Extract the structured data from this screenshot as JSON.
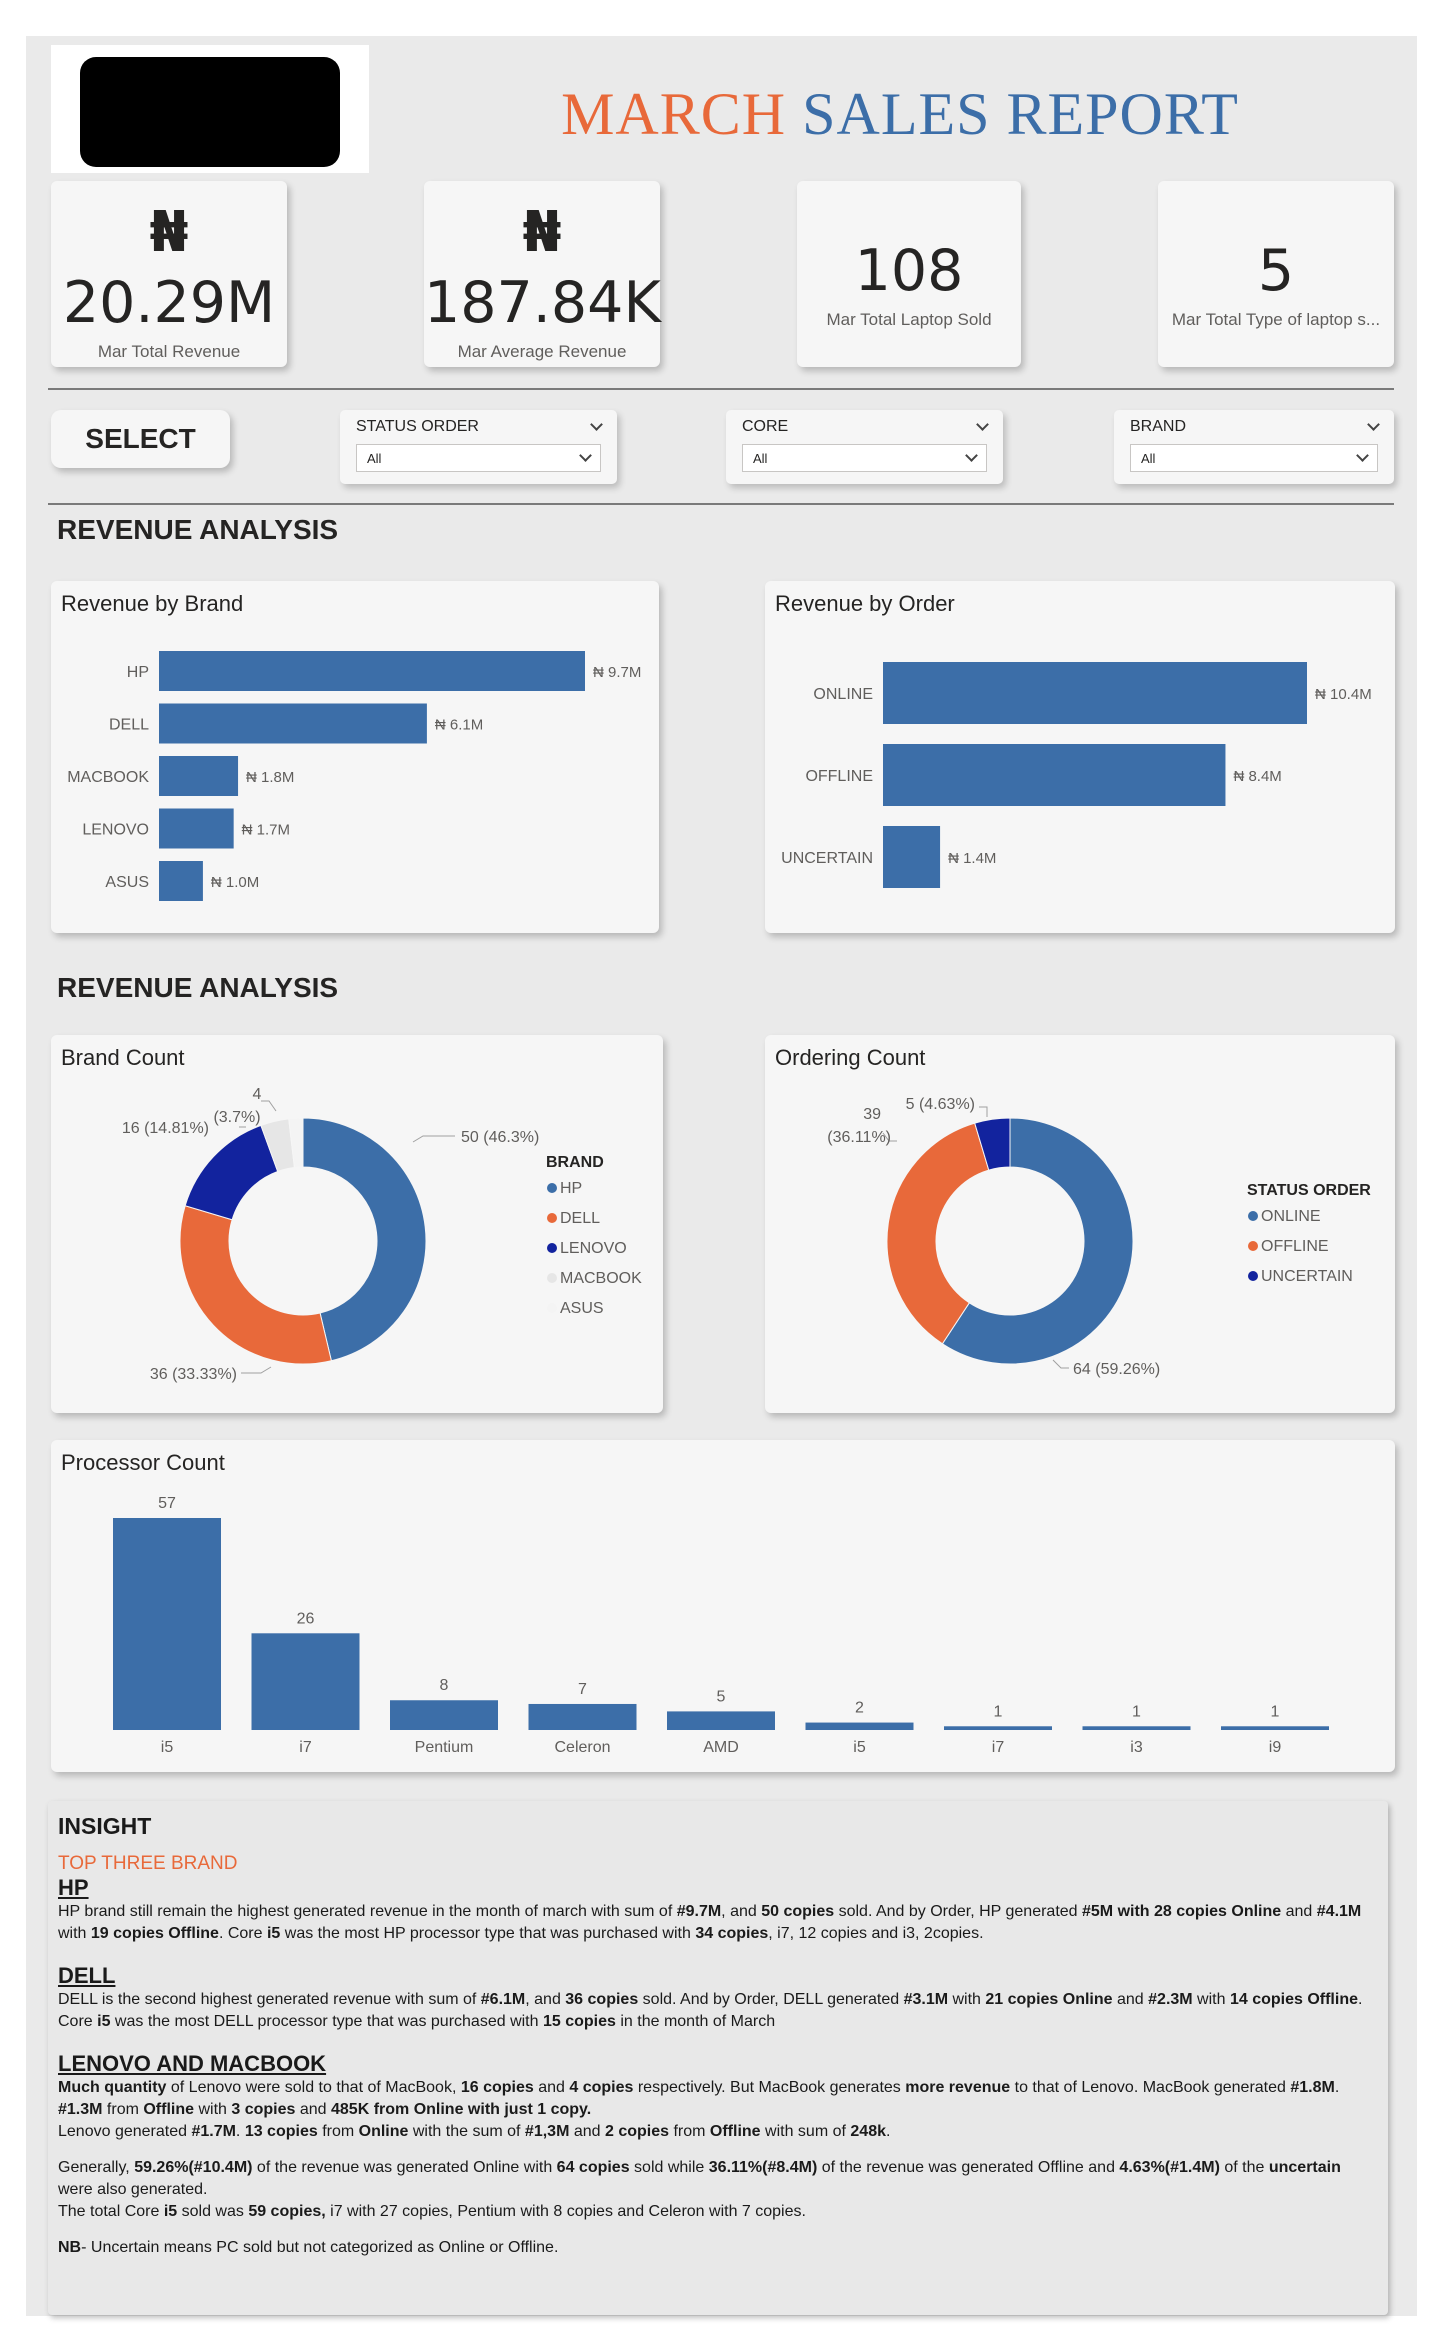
{
  "header": {
    "title_part1": "MARCH",
    "title_part2": "SALES REPORT",
    "title_color1": "#e8693a",
    "title_color2": "#3c6ea8"
  },
  "kpis": [
    {
      "currency": "₦",
      "value": "20.29M",
      "label": "Mar Total Revenue"
    },
    {
      "currency": "₦",
      "value": "187.84K",
      "label": "Mar Average Revenue"
    },
    {
      "currency": "",
      "value": "108",
      "label": "Mar Total Laptop Sold"
    },
    {
      "currency": "",
      "value": "5",
      "label": "Mar Total Type of laptop s..."
    }
  ],
  "filters": {
    "select_label": "SELECT",
    "slicers": [
      {
        "title": "STATUS ORDER",
        "value": "All"
      },
      {
        "title": "CORE",
        "value": "All"
      },
      {
        "title": "BRAND",
        "value": "All"
      }
    ]
  },
  "sections": {
    "revenue_1": "REVENUE ANALYSIS",
    "revenue_2": "REVENUE ANALYSIS"
  },
  "colors": {
    "blue": "#3c6ea8",
    "orange": "#e8693a",
    "navy": "#12239e",
    "light": "#e6e6e6",
    "accent_title": "#e8693a"
  },
  "chart_data": [
    {
      "id": "revenue_by_brand",
      "type": "bar",
      "orientation": "horizontal",
      "title": "Revenue by Brand",
      "categories": [
        "HP",
        "DELL",
        "MACBOOK",
        "LENOVO",
        "ASUS"
      ],
      "values": [
        9.7,
        6.1,
        1.8,
        1.7,
        1.0
      ],
      "value_labels": [
        "₦ 9.7M",
        "₦ 6.1M",
        "₦ 1.8M",
        "₦ 1.7M",
        "₦ 1.0M"
      ],
      "unit": "M",
      "xlim": [
        0,
        9.7
      ],
      "grid": false
    },
    {
      "id": "revenue_by_order",
      "type": "bar",
      "orientation": "horizontal",
      "title": "Revenue by Order",
      "categories": [
        "ONLINE",
        "OFFLINE",
        "UNCERTAIN"
      ],
      "values": [
        10.4,
        8.4,
        1.4
      ],
      "value_labels": [
        "₦ 10.4M",
        "₦ 8.4M",
        "₦ 1.4M"
      ],
      "unit": "M",
      "xlim": [
        0,
        10.4
      ],
      "grid": false
    },
    {
      "id": "brand_count",
      "type": "pie",
      "donut": true,
      "title": "Brand Count",
      "legend_title": "BRAND",
      "legend_position": "right",
      "slices": [
        {
          "label": "HP",
          "value": 50,
          "data_label": "50 (46.3%)",
          "color": "#3c6ea8"
        },
        {
          "label": "DELL",
          "value": 36,
          "data_label": "36 (33.33%)",
          "color": "#e8693a"
        },
        {
          "label": "LENOVO",
          "value": 16,
          "data_label": "16 (14.81%)",
          "color": "#12239e"
        },
        {
          "label": "MACBOOK",
          "value": 4,
          "data_label_value": "4",
          "data_label_pct": "(3.7%)",
          "color": "#e6e6e6"
        },
        {
          "label": "ASUS",
          "value": 2,
          "color": "#f4f4f4"
        }
      ]
    },
    {
      "id": "ordering_count",
      "type": "pie",
      "donut": true,
      "title": "Ordering Count",
      "legend_title": "STATUS ORDER",
      "legend_position": "right",
      "slices": [
        {
          "label": "ONLINE",
          "value": 64,
          "data_label": "64 (59.26%)",
          "color": "#3c6ea8"
        },
        {
          "label": "OFFLINE",
          "value": 39,
          "data_label_value": "39",
          "data_label_pct": "(36.11%)",
          "color": "#e8693a"
        },
        {
          "label": "UNCERTAIN",
          "value": 5,
          "data_label": "5 (4.63%)",
          "color": "#12239e"
        }
      ]
    },
    {
      "id": "processor_count",
      "type": "bar",
      "orientation": "vertical",
      "title": "Processor Count",
      "categories": [
        "i5",
        "i7",
        "Pentium",
        "Celeron",
        "AMD",
        "i5",
        "i7",
        "i3",
        "i9"
      ],
      "values": [
        57,
        26,
        8,
        7,
        5,
        2,
        1,
        1,
        1
      ],
      "ylim": [
        0,
        57
      ],
      "grid": false
    }
  ],
  "insight": {
    "title": "INSIGHT",
    "subtitle": "TOP THREE BRAND",
    "hp": {
      "heading": "HP",
      "t1": "HP brand still remain the highest generated revenue in the month of march with sum of ",
      "b1": "#9.7M",
      "t2": ", and ",
      "b2": "50 copies",
      "t3": " sold. And by Order, HP generated ",
      "b3": "#5M with 28 copies Online",
      "t4": " and ",
      "b4": "#4.1M",
      "t5": " with ",
      "b5": "19 copies Offline",
      "t6": ". Core ",
      "b6": "i5",
      "t7": " was the most HP processor type that was purchased with ",
      "b7": "34 copies",
      "t8": ", i7, 12 copies and i3, 2copies."
    },
    "dell": {
      "heading": "DELL",
      "t1": "DELL is the second highest generated revenue with sum  of  ",
      "b1": "#6.1M",
      "t2": ", and ",
      "b2": "36 copies",
      "t3": " sold. And by Order, DELL generated ",
      "b3": "#3.1M",
      "t4": " with ",
      "b4": "21 copies Online",
      "t5": " and ",
      "b5": "#2.3M",
      "t6": " with ",
      "b6": "14 copies Offline",
      "t7": ". Core ",
      "b7": "i5",
      "t8": " was the most DELL processor type that was purchased with ",
      "b8": "15 copies",
      "t9": " in the month of March"
    },
    "lenovo": {
      "heading": "LENOVO AND MACBOOK",
      "b1": "Much quantity",
      "t1": " of Lenovo were sold to that of MacBook, ",
      "b2": "16 copies",
      "t2": " and ",
      "b3": "4 copies",
      "t3": " respectively. But MacBook generates ",
      "b4": "more revenue",
      "t4": " to that of Lenovo. MacBook generated ",
      "b5": "#1.8M",
      "t5": ". ",
      "b6": "#1.3M",
      "t6": " from ",
      "b7": "Offline",
      "t7": " with ",
      "b8": "3 copies",
      "t8": " and ",
      "b9": "485K from Online with just 1 copy.",
      "l2_t1": "Lenovo generated ",
      "l2_b1": "#1.7M",
      "l2_t2": ". ",
      "l2_b2": "13 copies",
      "l2_t3": " from ",
      "l2_b3": "Online",
      "l2_t4": " with the sum of ",
      "l2_b4": "#1,3M",
      "l2_t5": " and ",
      "l2_b5": "2 copies",
      "l2_t6": " from ",
      "l2_b6": "Offline",
      "l2_t7": " with sum of ",
      "l2_b7": "248k",
      "l2_t8": "."
    },
    "general": {
      "t1": "Generally, ",
      "b1": "59.26%(#10.4M)",
      "t2": " of the revenue was generated  Online with ",
      "b2": "64 copies",
      "t3": " sold while ",
      "b3": "36.11%(#8.4M)",
      "t4": " of the revenue was generated Offline and ",
      "b4": "4.63%(#1.4M)",
      "t5": " of the ",
      "b5": "uncertain",
      "t6": " were also generated.",
      "l2_t1": "The total Core ",
      "l2_b1": "i5",
      "l2_t2": " sold was ",
      "l2_b2": "59 copies,",
      "l2_t3": " i7 with 27 copies, Pentium with 8 copies and Celeron with 7 copies."
    },
    "nb": {
      "b1": "NB",
      "t1": "- Uncertain means PC sold but not categorized as Online or Offline."
    }
  }
}
